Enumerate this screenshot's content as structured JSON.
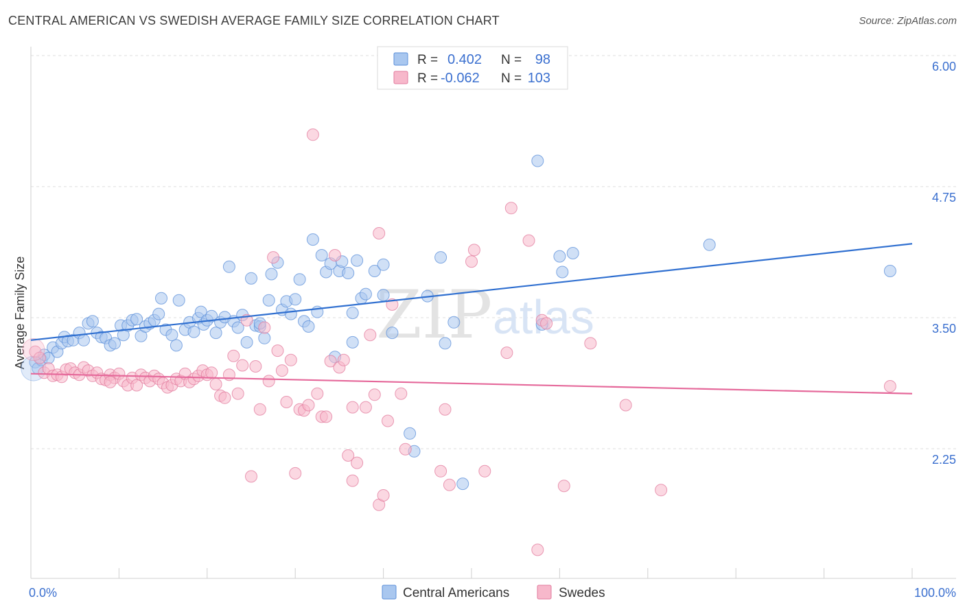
{
  "header": {
    "title": "CENTRAL AMERICAN VS SWEDISH AVERAGE FAMILY SIZE CORRELATION CHART",
    "source": "Source: ZipAtlas.com"
  },
  "watermark": {
    "zip": "ZIP",
    "atlas": "atlas"
  },
  "legend_box": {
    "rows": [
      {
        "r_label": "R =",
        "r_value": "0.402",
        "n_label": "N =",
        "n_value": "98",
        "color": "#a9c7ef",
        "stroke": "#5b8fd9"
      },
      {
        "r_label": "R =",
        "r_value": "-0.062",
        "n_label": "N =",
        "n_value": "103",
        "color": "#f7b8cb",
        "stroke": "#e27a9c"
      }
    ]
  },
  "bottom_legend": {
    "items": [
      {
        "label": "Central Americans",
        "color": "#a9c7ef",
        "stroke": "#5b8fd9"
      },
      {
        "label": "Swedes",
        "color": "#f7b8cb",
        "stroke": "#e27a9c"
      }
    ]
  },
  "chart_data": {
    "type": "scatter",
    "title": "CENTRAL AMERICAN VS SWEDISH AVERAGE FAMILY SIZE CORRELATION CHART",
    "xlabel": "",
    "ylabel": "Average Family Size",
    "xlim": [
      0,
      100
    ],
    "ylim": [
      1.25,
      6.25
    ],
    "x_tick_labels": [
      "0.0%",
      "100.0%"
    ],
    "y_ticks": [
      2.25,
      3.5,
      4.75,
      6.0
    ],
    "y_tick_labels": [
      "2.25",
      "3.50",
      "4.75",
      "6.00"
    ],
    "grid": "horizontal dashed",
    "series": [
      {
        "name": "Central Americans",
        "color": "#5b8fd9",
        "fill": "#a9c7ef",
        "trend": {
          "x": [
            0,
            100
          ],
          "y": [
            3.39,
            4.31
          ]
        },
        "points": [
          [
            0.5,
            3.18
          ],
          [
            0.8,
            3.12
          ],
          [
            1.2,
            3.2
          ],
          [
            1.5,
            3.25
          ],
          [
            2.0,
            3.22
          ],
          [
            2.5,
            3.32
          ],
          [
            3.0,
            3.28
          ],
          [
            3.5,
            3.36
          ],
          [
            3.8,
            3.42
          ],
          [
            4.2,
            3.38
          ],
          [
            4.8,
            3.39
          ],
          [
            5.5,
            3.46
          ],
          [
            6.0,
            3.39
          ],
          [
            6.5,
            3.55
          ],
          [
            7.0,
            3.57
          ],
          [
            7.5,
            3.46
          ],
          [
            8.0,
            3.42
          ],
          [
            8.5,
            3.41
          ],
          [
            9.0,
            3.34
          ],
          [
            9.5,
            3.36
          ],
          [
            10.2,
            3.53
          ],
          [
            10.5,
            3.44
          ],
          [
            11.0,
            3.53
          ],
          [
            11.5,
            3.58
          ],
          [
            12.0,
            3.59
          ],
          [
            12.5,
            3.43
          ],
          [
            13.0,
            3.52
          ],
          [
            13.5,
            3.55
          ],
          [
            14.0,
            3.58
          ],
          [
            14.5,
            3.64
          ],
          [
            14.8,
            3.79
          ],
          [
            15.3,
            3.49
          ],
          [
            16.0,
            3.44
          ],
          [
            16.5,
            3.34
          ],
          [
            16.8,
            3.77
          ],
          [
            17.5,
            3.49
          ],
          [
            18.0,
            3.56
          ],
          [
            18.5,
            3.47
          ],
          [
            19.0,
            3.6
          ],
          [
            19.3,
            3.66
          ],
          [
            19.6,
            3.54
          ],
          [
            20.0,
            3.58
          ],
          [
            20.5,
            3.62
          ],
          [
            21.0,
            3.46
          ],
          [
            21.5,
            3.56
          ],
          [
            22.0,
            3.61
          ],
          [
            22.5,
            4.09
          ],
          [
            23.0,
            3.57
          ],
          [
            23.5,
            3.51
          ],
          [
            24.0,
            3.63
          ],
          [
            24.5,
            3.37
          ],
          [
            25.0,
            3.98
          ],
          [
            25.5,
            3.53
          ],
          [
            26.0,
            3.52
          ],
          [
            26.5,
            3.41
          ],
          [
            27.0,
            3.77
          ],
          [
            27.3,
            4.02
          ],
          [
            28.0,
            4.13
          ],
          [
            28.5,
            3.68
          ],
          [
            29.0,
            3.76
          ],
          [
            29.5,
            3.64
          ],
          [
            30.0,
            3.78
          ],
          [
            30.5,
            3.97
          ],
          [
            31.0,
            3.57
          ],
          [
            31.5,
            3.52
          ],
          [
            32.0,
            4.35
          ],
          [
            32.5,
            3.66
          ],
          [
            33.0,
            4.2
          ],
          [
            33.5,
            4.04
          ],
          [
            34.0,
            4.12
          ],
          [
            34.5,
            3.23
          ],
          [
            35.0,
            4.05
          ],
          [
            35.3,
            4.14
          ],
          [
            36.0,
            4.03
          ],
          [
            36.5,
            3.65
          ],
          [
            37.0,
            4.15
          ],
          [
            37.5,
            3.79
          ],
          [
            38.0,
            3.83
          ],
          [
            39.0,
            4.05
          ],
          [
            40.0,
            4.11
          ],
          [
            40.0,
            3.82
          ],
          [
            41.0,
            3.46
          ],
          [
            43.0,
            2.5
          ],
          [
            43.5,
            2.33
          ],
          [
            45.0,
            3.81
          ],
          [
            46.5,
            4.18
          ],
          [
            47.0,
            3.36
          ],
          [
            48.0,
            3.56
          ],
          [
            49.0,
            2.02
          ],
          [
            57.5,
            5.1
          ],
          [
            58.0,
            3.54
          ],
          [
            60.0,
            4.19
          ],
          [
            60.3,
            4.04
          ],
          [
            61.5,
            4.22
          ],
          [
            77.0,
            4.3
          ],
          [
            97.5,
            4.05
          ],
          [
            36.5,
            3.37
          ],
          [
            26.0,
            3.55
          ]
        ]
      },
      {
        "name": "Swedes",
        "color": "#e27a9c",
        "fill": "#f7b8cb",
        "trend": {
          "x": [
            0,
            100
          ],
          "y": [
            3.07,
            2.88
          ]
        },
        "points": [
          [
            0.5,
            3.28
          ],
          [
            1.0,
            3.22
          ],
          [
            1.5,
            3.08
          ],
          [
            2.0,
            3.12
          ],
          [
            2.5,
            3.05
          ],
          [
            3.0,
            3.06
          ],
          [
            3.5,
            3.04
          ],
          [
            4.0,
            3.11
          ],
          [
            4.5,
            3.12
          ],
          [
            5.0,
            3.08
          ],
          [
            5.5,
            3.06
          ],
          [
            6.0,
            3.13
          ],
          [
            6.5,
            3.1
          ],
          [
            7.0,
            3.05
          ],
          [
            7.5,
            3.08
          ],
          [
            8.0,
            3.02
          ],
          [
            8.5,
            3.01
          ],
          [
            9.0,
            3.06
          ],
          [
            9.5,
            3.03
          ],
          [
            10.0,
            3.07
          ],
          [
            10.5,
            3.0
          ],
          [
            11.0,
            2.96
          ],
          [
            11.5,
            3.03
          ],
          [
            12.0,
            2.96
          ],
          [
            12.5,
            3.06
          ],
          [
            13.0,
            3.03
          ],
          [
            13.5,
            3.0
          ],
          [
            14.0,
            3.05
          ],
          [
            14.5,
            3.02
          ],
          [
            15.0,
            2.98
          ],
          [
            15.5,
            2.94
          ],
          [
            16.0,
            2.96
          ],
          [
            16.5,
            3.02
          ],
          [
            17.0,
            3.0
          ],
          [
            17.5,
            3.07
          ],
          [
            18.0,
            2.99
          ],
          [
            18.5,
            3.02
          ],
          [
            19.0,
            3.05
          ],
          [
            19.5,
            3.1
          ],
          [
            20.0,
            3.06
          ],
          [
            20.5,
            3.08
          ],
          [
            21.0,
            2.97
          ],
          [
            21.5,
            2.86
          ],
          [
            22.0,
            2.84
          ],
          [
            22.5,
            3.06
          ],
          [
            23.0,
            3.24
          ],
          [
            23.5,
            2.88
          ],
          [
            24.0,
            3.15
          ],
          [
            24.5,
            3.58
          ],
          [
            25.0,
            2.09
          ],
          [
            25.5,
            3.14
          ],
          [
            26.0,
            2.73
          ],
          [
            26.5,
            3.51
          ],
          [
            27.0,
            3.0
          ],
          [
            27.5,
            4.18
          ],
          [
            28.0,
            3.29
          ],
          [
            28.5,
            3.1
          ],
          [
            29.0,
            2.8
          ],
          [
            29.5,
            3.2
          ],
          [
            30.0,
            2.12
          ],
          [
            30.5,
            2.73
          ],
          [
            31.0,
            2.72
          ],
          [
            31.5,
            2.77
          ],
          [
            32.0,
            5.35
          ],
          [
            32.5,
            2.88
          ],
          [
            33.0,
            2.66
          ],
          [
            33.5,
            2.66
          ],
          [
            34.0,
            3.19
          ],
          [
            34.5,
            4.2
          ],
          [
            35.0,
            3.13
          ],
          [
            35.5,
            3.2
          ],
          [
            36.0,
            2.29
          ],
          [
            36.5,
            2.05
          ],
          [
            36.5,
            2.75
          ],
          [
            37.0,
            2.22
          ],
          [
            38.0,
            2.75
          ],
          [
            38.5,
            3.44
          ],
          [
            39.0,
            2.87
          ],
          [
            39.5,
            4.41
          ],
          [
            39.5,
            1.82
          ],
          [
            40.0,
            1.91
          ],
          [
            40.5,
            2.62
          ],
          [
            41.0,
            3.73
          ],
          [
            42.0,
            2.88
          ],
          [
            42.5,
            2.35
          ],
          [
            46.5,
            2.14
          ],
          [
            47.0,
            2.73
          ],
          [
            47.5,
            2.01
          ],
          [
            50.0,
            4.14
          ],
          [
            50.3,
            4.25
          ],
          [
            51.5,
            2.14
          ],
          [
            54.0,
            3.27
          ],
          [
            54.5,
            4.65
          ],
          [
            56.5,
            4.34
          ],
          [
            58.0,
            3.58
          ],
          [
            58.5,
            3.55
          ],
          [
            60.5,
            2.0
          ],
          [
            63.5,
            3.36
          ],
          [
            67.5,
            2.77
          ],
          [
            71.5,
            1.96
          ],
          [
            57.5,
            1.39
          ],
          [
            97.5,
            2.95
          ],
          [
            9.0,
            2.99
          ]
        ]
      }
    ]
  }
}
